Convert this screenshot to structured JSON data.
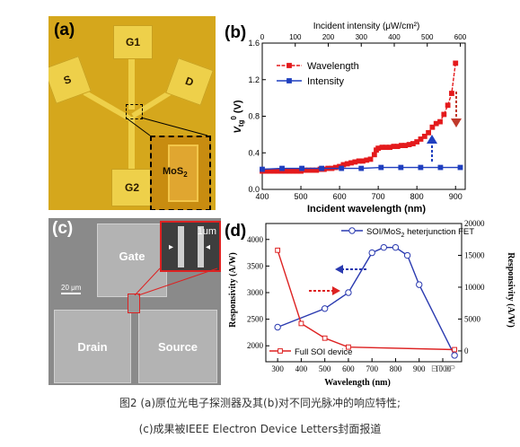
{
  "panels": {
    "a": {
      "label": "(a)",
      "pads": {
        "g1": "G1",
        "s": "S",
        "d": "D",
        "g2": "G2"
      },
      "inset_label": "MoS",
      "inset_sub": "2"
    },
    "c": {
      "label": "(c)",
      "gate": "Gate",
      "drain": "Drain",
      "source": "Source",
      "scale": "20 μm",
      "inset_scale": "1um",
      "arrow_left": "▸",
      "arrow_right": "◂"
    }
  },
  "chart_data": [
    {
      "id": "b",
      "panel_label": "(b)",
      "type": "line",
      "xlabel": "Incident wavelength (nm)",
      "x2label": "Incident intensity (μW/cm²)",
      "ylabel_main": "V",
      "ylabel_sub": "tg",
      "ylabel_sup": "0",
      "ylabel_unit": " (V)",
      "xlim": [
        400,
        925
      ],
      "x2lim": [
        0,
        615
      ],
      "ylim": [
        0,
        1.6
      ],
      "xticks": [
        400,
        500,
        600,
        700,
        800,
        900
      ],
      "x2ticks": [
        0,
        100,
        200,
        300,
        400,
        500,
        600
      ],
      "yticks": [
        0.0,
        0.4,
        0.8,
        1.2,
        1.6
      ],
      "ytick_labels": [
        "0.0",
        "0.4",
        "0.8",
        "1.2",
        "1.6"
      ],
      "legend_position": "top-left",
      "series": [
        {
          "name": "Wavelength",
          "axis": "bottom",
          "color": "#e41a1c",
          "marker": "square",
          "x": [
            400,
            410,
            420,
            430,
            440,
            450,
            460,
            470,
            480,
            490,
            500,
            510,
            520,
            530,
            540,
            550,
            560,
            570,
            580,
            590,
            600,
            610,
            620,
            630,
            640,
            650,
            660,
            670,
            680,
            690,
            695,
            700,
            710,
            720,
            730,
            740,
            750,
            760,
            770,
            780,
            790,
            800,
            810,
            820,
            830,
            840,
            850,
            860,
            870,
            880,
            890,
            900
          ],
          "y": [
            0.2,
            0.2,
            0.2,
            0.2,
            0.2,
            0.2,
            0.2,
            0.2,
            0.2,
            0.2,
            0.2,
            0.21,
            0.21,
            0.21,
            0.21,
            0.22,
            0.22,
            0.23,
            0.23,
            0.24,
            0.25,
            0.27,
            0.28,
            0.29,
            0.3,
            0.31,
            0.31,
            0.32,
            0.33,
            0.38,
            0.43,
            0.45,
            0.46,
            0.46,
            0.46,
            0.47,
            0.47,
            0.48,
            0.48,
            0.49,
            0.5,
            0.52,
            0.55,
            0.58,
            0.62,
            0.68,
            0.72,
            0.74,
            0.82,
            0.92,
            1.05,
            1.38
          ]
        },
        {
          "name": "Intensity",
          "axis": "top",
          "color": "#1f3fbf",
          "marker": "square",
          "x": [
            0,
            60,
            120,
            180,
            240,
            300,
            360,
            420,
            480,
            540,
            600
          ],
          "y": [
            0.22,
            0.23,
            0.23,
            0.23,
            0.23,
            0.23,
            0.24,
            0.24,
            0.24,
            0.24,
            0.24
          ]
        }
      ]
    },
    {
      "id": "d",
      "panel_label": "(d)",
      "type": "line",
      "xlabel": "Wavelength (nm)",
      "ylabel_left": "Responsivity (A/W)",
      "ylabel_right": "Responsivity (A/W)",
      "xlim": [
        250,
        1080
      ],
      "xticks": [
        300,
        400,
        500,
        600,
        700,
        800,
        900,
        1000
      ],
      "xtick_labels": [
        "300",
        "400",
        "500",
        "600",
        "700",
        "800",
        "900",
        "1000"
      ],
      "ylim_left": [
        1700,
        4300
      ],
      "yticks_left": [
        2000,
        2500,
        3000,
        3500,
        4000
      ],
      "ylim_right": [
        -1700,
        20000
      ],
      "yticks_right": [
        0,
        5000,
        10000,
        15000,
        20000
      ],
      "legend_position": "top-right",
      "series": [
        {
          "name": "SOI/MoS",
          "name_sub": "2",
          "name_rest": " heterjunction FET",
          "axis": "left",
          "color": "#2a3ab0",
          "marker": "circle",
          "x": [
            300,
            500,
            600,
            700,
            750,
            800,
            850,
            900,
            1050
          ],
          "y": [
            2350,
            2700,
            3000,
            3750,
            3850,
            3850,
            3700,
            3150,
            1820
          ]
        },
        {
          "name": "Full SOI device",
          "axis": "right",
          "color": "#d22",
          "marker": "square",
          "x": [
            300,
            400,
            500,
            600,
            1050
          ],
          "y": [
            15800,
            4300,
            2000,
            600,
            200
          ]
        }
      ]
    }
  ],
  "caption_line1": "图2 (a)原位光电子探测器及其(b)对不同光脉冲的响应特性;",
  "caption_line2": "(c)成果被IEEE Electron Device Letters封面报道",
  "watermark": "ETOP",
  "colors": {
    "pad": "#eed04a",
    "substrate": "#d5a71c",
    "red": "#e41a1c",
    "blue": "#1f3fbf"
  }
}
